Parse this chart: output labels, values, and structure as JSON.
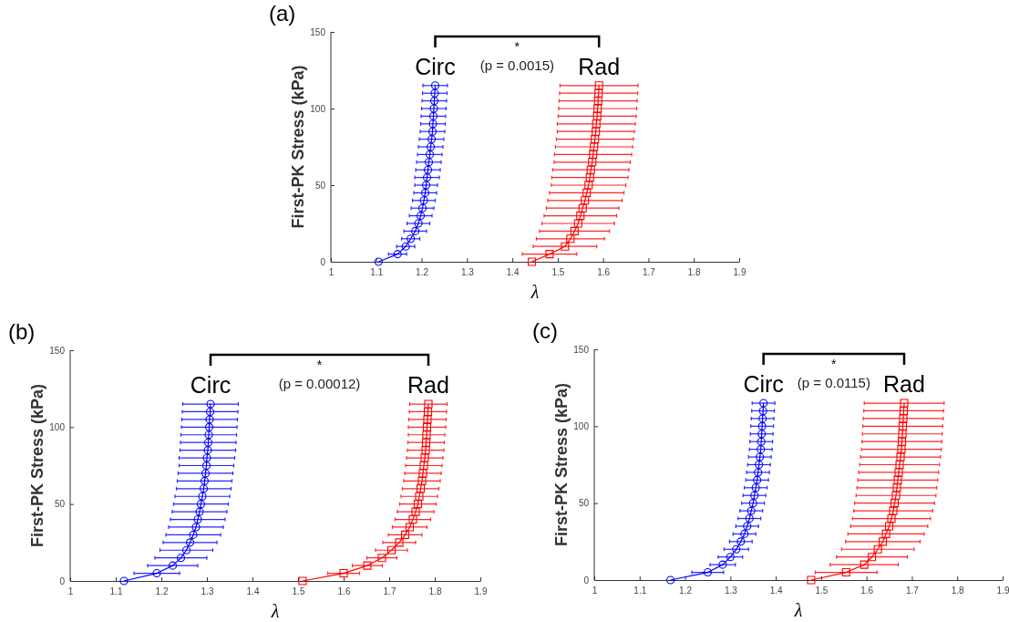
{
  "chart_data": [
    {
      "type": "line",
      "title": "(a)",
      "xlabel": "λ",
      "ylabel": "First-PK Stress (kPa)",
      "xlim": [
        1,
        1.9
      ],
      "xticks": [
        1,
        1.1,
        1.2,
        1.3,
        1.4,
        1.5,
        1.6,
        1.7,
        1.8,
        1.9
      ],
      "ylim": [
        0,
        150
      ],
      "yticks": [
        0,
        50,
        100,
        150
      ],
      "grid": false,
      "line_style": "solid",
      "annotations": [
        "*",
        "(p = 0.0015)"
      ],
      "series": [
        {
          "name": "Circ",
          "color": "#0000ff",
          "marker": "circle",
          "x": [
            1.105,
            1.147,
            1.165,
            1.176,
            1.186,
            1.193,
            1.198,
            1.202,
            1.205,
            1.208,
            1.21,
            1.212,
            1.214,
            1.216,
            1.218,
            1.22,
            1.222,
            1.224,
            1.225,
            1.226,
            1.227,
            1.228,
            1.229,
            1.23
          ],
          "values": [
            0,
            5,
            10,
            15,
            20,
            25,
            30,
            35,
            40,
            45,
            50,
            55,
            60,
            65,
            70,
            75,
            80,
            85,
            90,
            95,
            100,
            105,
            110,
            115
          ],
          "xerrors": [
            null,
            0.02,
            0.02,
            0.02,
            0.025,
            0.025,
            0.025,
            0.025,
            0.025,
            0.025,
            0.025,
            0.027,
            0.027,
            0.027,
            0.027,
            0.027,
            0.027,
            0.027,
            0.027,
            0.027,
            0.027,
            0.027,
            0.027,
            0.027
          ]
        },
        {
          "name": "Rad",
          "color": "#ff0000",
          "marker": "square",
          "x": [
            1.443,
            1.482,
            1.516,
            1.528,
            1.537,
            1.545,
            1.55,
            1.555,
            1.56,
            1.564,
            1.568,
            1.571,
            1.573,
            1.576,
            1.578,
            1.58,
            1.582,
            1.584,
            1.585,
            1.587,
            1.588,
            1.589,
            1.59,
            1.591
          ],
          "values": [
            0,
            5,
            10,
            15,
            20,
            25,
            30,
            35,
            40,
            45,
            50,
            55,
            60,
            65,
            70,
            75,
            80,
            85,
            90,
            95,
            100,
            105,
            110,
            115
          ],
          "xerrors": [
            null,
            0.06,
            0.07,
            0.075,
            0.077,
            0.08,
            0.08,
            0.08,
            0.082,
            0.082,
            0.082,
            0.084,
            0.084,
            0.084,
            0.085,
            0.085,
            0.085,
            0.085,
            0.086,
            0.086,
            0.086,
            0.086,
            0.086,
            0.086
          ]
        }
      ]
    },
    {
      "type": "line",
      "title": "(b)",
      "xlabel": "λ",
      "ylabel": "First-PK Stress (kPa)",
      "xlim": [
        1,
        1.9
      ],
      "xticks": [
        1,
        1.1,
        1.2,
        1.3,
        1.4,
        1.5,
        1.6,
        1.7,
        1.8,
        1.9
      ],
      "ylim": [
        0,
        150
      ],
      "yticks": [
        0,
        50,
        100,
        150
      ],
      "grid": false,
      "line_style": "solid",
      "annotations": [
        "*",
        "(p = 0.00012)"
      ],
      "series": [
        {
          "name": "Circ",
          "color": "#0000ff",
          "marker": "circle",
          "x": [
            1.118,
            1.19,
            1.225,
            1.243,
            1.255,
            1.263,
            1.27,
            1.276,
            1.28,
            1.284,
            1.287,
            1.29,
            1.293,
            1.295,
            1.297,
            1.299,
            1.3,
            1.302,
            1.303,
            1.304,
            1.305,
            1.306,
            1.307,
            1.308
          ],
          "values": [
            0,
            5,
            10,
            15,
            20,
            25,
            30,
            35,
            40,
            45,
            50,
            55,
            60,
            65,
            70,
            75,
            80,
            85,
            90,
            95,
            100,
            105,
            110,
            115
          ],
          "xerrors": [
            null,
            0.05,
            0.055,
            0.057,
            0.058,
            0.059,
            0.06,
            0.06,
            0.06,
            0.06,
            0.06,
            0.06,
            0.06,
            0.06,
            0.06,
            0.06,
            0.061,
            0.061,
            0.061,
            0.061,
            0.061,
            0.061,
            0.061,
            0.061
          ]
        },
        {
          "name": "Rad",
          "color": "#ff0000",
          "marker": "square",
          "x": [
            1.51,
            1.6,
            1.652,
            1.684,
            1.705,
            1.722,
            1.735,
            1.745,
            1.752,
            1.758,
            1.763,
            1.766,
            1.769,
            1.772,
            1.774,
            1.776,
            1.778,
            1.78,
            1.781,
            1.782,
            1.783,
            1.784,
            1.785,
            1.786
          ],
          "values": [
            0,
            5,
            10,
            15,
            20,
            25,
            30,
            35,
            40,
            45,
            50,
            55,
            60,
            65,
            70,
            75,
            80,
            85,
            90,
            95,
            100,
            105,
            110,
            115
          ],
          "xerrors": [
            null,
            0.035,
            0.033,
            0.033,
            0.035,
            0.036,
            0.037,
            0.038,
            0.039,
            0.04,
            0.04,
            0.04,
            0.04,
            0.04,
            0.04,
            0.04,
            0.04,
            0.04,
            0.04,
            0.04,
            0.041,
            0.041,
            0.041,
            0.041
          ]
        }
      ]
    },
    {
      "type": "line",
      "title": "(c)",
      "xlabel": "λ",
      "ylabel": "First-PK Stress (kPa)",
      "xlim": [
        1,
        1.9
      ],
      "xticks": [
        1,
        1.1,
        1.2,
        1.3,
        1.4,
        1.5,
        1.6,
        1.7,
        1.8,
        1.9
      ],
      "ylim": [
        0,
        150
      ],
      "yticks": [
        0,
        50,
        100,
        150
      ],
      "grid": false,
      "line_style": "solid",
      "annotations": [
        "*",
        "(p = 0.0115)"
      ],
      "series": [
        {
          "name": "Circ",
          "color": "#0000ff",
          "marker": "circle",
          "x": [
            1.168,
            1.25,
            1.283,
            1.3,
            1.313,
            1.323,
            1.331,
            1.337,
            1.342,
            1.346,
            1.35,
            1.353,
            1.356,
            1.359,
            1.361,
            1.363,
            1.365,
            1.367,
            1.368,
            1.369,
            1.37,
            1.371,
            1.372,
            1.373
          ],
          "values": [
            0,
            5,
            10,
            15,
            20,
            25,
            30,
            35,
            40,
            45,
            50,
            55,
            60,
            65,
            70,
            75,
            80,
            85,
            90,
            95,
            100,
            105,
            110,
            115
          ],
          "xerrors": [
            null,
            0.035,
            0.028,
            0.027,
            0.027,
            0.025,
            0.025,
            0.025,
            0.025,
            0.025,
            0.025,
            0.025,
            0.025,
            0.025,
            0.025,
            0.025,
            0.025,
            0.025,
            0.025,
            0.025,
            0.025,
            0.025,
            0.025,
            0.025
          ]
        },
        {
          "name": "Rad",
          "color": "#ff0000",
          "marker": "square",
          "x": [
            1.478,
            1.555,
            1.595,
            1.612,
            1.625,
            1.636,
            1.643,
            1.65,
            1.655,
            1.659,
            1.662,
            1.665,
            1.667,
            1.669,
            1.671,
            1.673,
            1.675,
            1.677,
            1.678,
            1.679,
            1.68,
            1.681,
            1.682,
            1.683
          ],
          "values": [
            0,
            5,
            10,
            15,
            20,
            25,
            30,
            35,
            40,
            45,
            50,
            55,
            60,
            65,
            70,
            75,
            80,
            85,
            90,
            95,
            100,
            105,
            110,
            115
          ],
          "xerrors": [
            null,
            0.068,
            0.075,
            0.078,
            0.08,
            0.082,
            0.084,
            0.085,
            0.086,
            0.087,
            0.088,
            0.088,
            0.088,
            0.088,
            0.088,
            0.088,
            0.088,
            0.088,
            0.088,
            0.088,
            0.088,
            0.088,
            0.088,
            0.088
          ]
        }
      ]
    }
  ]
}
